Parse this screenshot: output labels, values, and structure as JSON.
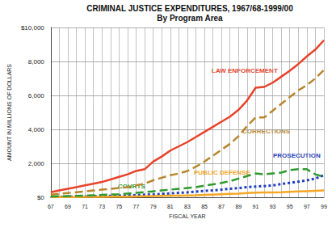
{
  "chart_data": {
    "type": "line",
    "title": "CRIMINAL JUSTICE EXPENDITURES, 1967/68-1999/00",
    "subtitle": "By Program Area",
    "x_label": "FISCAL YEAR",
    "y_label": "AMOUNT IN MILLIONS OF DOLLARS",
    "categories": [
      "67",
      null,
      "69",
      null,
      "71",
      null,
      "73",
      null,
      "75",
      null,
      "77",
      null,
      "79",
      null,
      "81",
      null,
      "83",
      null,
      "85",
      null,
      "87",
      null,
      "89",
      null,
      "91",
      null,
      "93",
      null,
      "95",
      null,
      "97",
      null,
      "99"
    ],
    "ylim": [
      0,
      10000
    ],
    "yticks": [
      {
        "value": 0,
        "label": "$0"
      },
      {
        "value": 2000,
        "label": "2,000"
      },
      {
        "value": 4000,
        "label": "4,000"
      },
      {
        "value": 6000,
        "label": "6,000"
      },
      {
        "value": 8000,
        "label": "8,000"
      },
      {
        "value": 10000,
        "label": "$10,000"
      }
    ],
    "grid": true,
    "series": [
      {
        "name": "LAW ENFORCEMENT",
        "color": "#e8432a",
        "line_style": "solid",
        "values": [
          300,
          400,
          500,
          600,
          700,
          800,
          900,
          1050,
          1200,
          1350,
          1550,
          1650,
          2100,
          2400,
          2750,
          3000,
          3250,
          3550,
          3850,
          4150,
          4450,
          4750,
          5150,
          5700,
          6450,
          6500,
          6750,
          7100,
          7450,
          7850,
          8300,
          8700,
          9250
        ]
      },
      {
        "name": "CORRECTIONS",
        "color": "#b8862b",
        "line_style": "dashed",
        "values": [
          150,
          200,
          250,
          300,
          350,
          400,
          450,
          500,
          550,
          600,
          700,
          800,
          1000,
          1150,
          1300,
          1400,
          1550,
          1800,
          2100,
          2450,
          2800,
          3150,
          3600,
          4200,
          4700,
          4700,
          5100,
          5500,
          5900,
          6300,
          6600,
          7000,
          7500
        ]
      },
      {
        "name": "PROSECUTION",
        "color": "#1f3fbf",
        "line_style": "dotted",
        "values": [
          20,
          25,
          30,
          40,
          50,
          60,
          70,
          80,
          100,
          110,
          130,
          150,
          170,
          200,
          230,
          260,
          290,
          330,
          370,
          410,
          450,
          500,
          540,
          600,
          630,
          660,
          700,
          780,
          850,
          920,
          1000,
          1100,
          1300
        ]
      },
      {
        "name": "PUBLIC DEFENSE",
        "color": "#f5a623",
        "line_style": "solid",
        "values": [
          10,
          10,
          12,
          15,
          18,
          20,
          25,
          30,
          35,
          40,
          50,
          60,
          70,
          80,
          90,
          100,
          110,
          120,
          140,
          160,
          180,
          200,
          220,
          250,
          270,
          280,
          290,
          300,
          320,
          340,
          360,
          380,
          400
        ]
      },
      {
        "name": "COURTS",
        "color": "#2e9a2e",
        "line_style": "dashed",
        "values": [
          50,
          60,
          70,
          80,
          100,
          120,
          140,
          160,
          180,
          220,
          260,
          300,
          350,
          400,
          450,
          500,
          550,
          600,
          680,
          760,
          850,
          950,
          1100,
          1250,
          1400,
          1350,
          1400,
          1450,
          1600,
          1650,
          1650,
          1350,
          1200
        ]
      }
    ]
  }
}
